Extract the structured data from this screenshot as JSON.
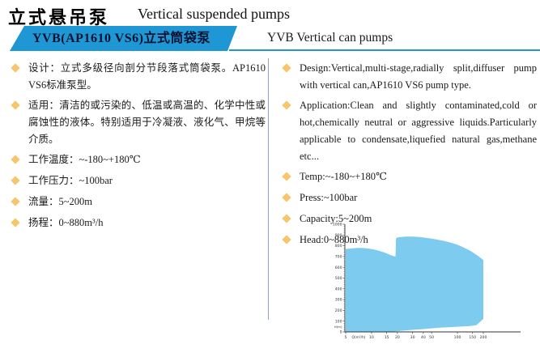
{
  "page": {
    "title_zh": "立式悬吊泵",
    "title_en": "Vertical suspended pumps"
  },
  "banner": {
    "model_zh": "YVB(AP1610 VS6)立式筒袋泵",
    "model_en": "YVB Vertical can pumps",
    "accent_color": "#1e97d4"
  },
  "bullet_icon": {
    "name": "diamond-bullet",
    "color": "#f6c56d"
  },
  "specs_zh": {
    "items": [
      "设计：立式多级径向剖分节段落式筒袋泵。AP1610 VS6标准泵型。",
      "适用：清洁的或污染的、低温或高温的、化学中性或腐蚀性的液体。特别适用于冷凝液、液化气、甲烷等介质。",
      "工作温度：~-180~+180℃",
      "工作压力：~100bar",
      "流量：5~200m",
      "扬程：0~880m³/h"
    ]
  },
  "specs_en": {
    "items": [
      "Design:Vertical,multi-stage,radially split,diffuser pump with vertical can,AP1610 VS6 pump type.",
      "Application:Clean and slightly contaminated,cold or hot,chemically neutral or aggressive liquids.Particularly applicable to condensate,liquefied natural gas,methane etc...",
      "Temp:~-180~+180℃",
      "Press:~100bar",
      "Capacity:5~200m",
      "Head:0~880m³/h"
    ]
  },
  "chart_data": {
    "type": "area",
    "title": "",
    "xlabel": "Q(m³/h)",
    "ylabel": "H(m)",
    "x_scale": "log",
    "xlim": [
      5,
      200
    ],
    "ylim": [
      0,
      1000
    ],
    "x_ticks": [
      5,
      10,
      15,
      20,
      30,
      40,
      50,
      100,
      150,
      200
    ],
    "y_ticks": [
      0,
      100,
      200,
      300,
      400,
      500,
      600,
      700,
      800,
      900,
      1000
    ],
    "y_minor_step": 20,
    "grid": false,
    "legend": null,
    "fill_color": "#7dcbef",
    "axis_color": "#333333",
    "envelope_QH": [
      [
        5,
        770
      ],
      [
        6,
        777
      ],
      [
        7,
        780
      ],
      [
        8,
        779
      ],
      [
        9,
        775
      ],
      [
        10.5,
        767
      ],
      [
        12,
        756
      ],
      [
        13.5,
        743
      ],
      [
        15,
        729
      ],
      [
        16.5,
        715
      ],
      [
        18,
        704
      ],
      [
        19,
        700
      ],
      [
        19.3,
        870
      ],
      [
        20,
        877
      ],
      [
        22,
        882
      ],
      [
        25,
        885
      ],
      [
        28,
        886
      ],
      [
        32,
        884
      ],
      [
        36,
        881
      ],
      [
        40,
        877
      ],
      [
        45,
        872
      ],
      [
        50,
        867
      ],
      [
        60,
        856
      ],
      [
        70,
        845
      ],
      [
        80,
        833
      ],
      [
        90,
        822
      ],
      [
        100,
        809
      ],
      [
        115,
        789
      ],
      [
        130,
        768
      ],
      [
        145,
        747
      ],
      [
        160,
        725
      ],
      [
        175,
        704
      ],
      [
        190,
        682
      ],
      [
        200,
        668
      ],
      [
        200,
        120
      ],
      [
        166,
        62
      ],
      [
        140,
        54
      ],
      [
        100,
        48
      ],
      [
        60,
        38
      ],
      [
        40,
        26
      ],
      [
        25,
        14
      ],
      [
        18,
        4
      ],
      [
        15,
        2
      ],
      [
        5,
        1
      ]
    ]
  }
}
